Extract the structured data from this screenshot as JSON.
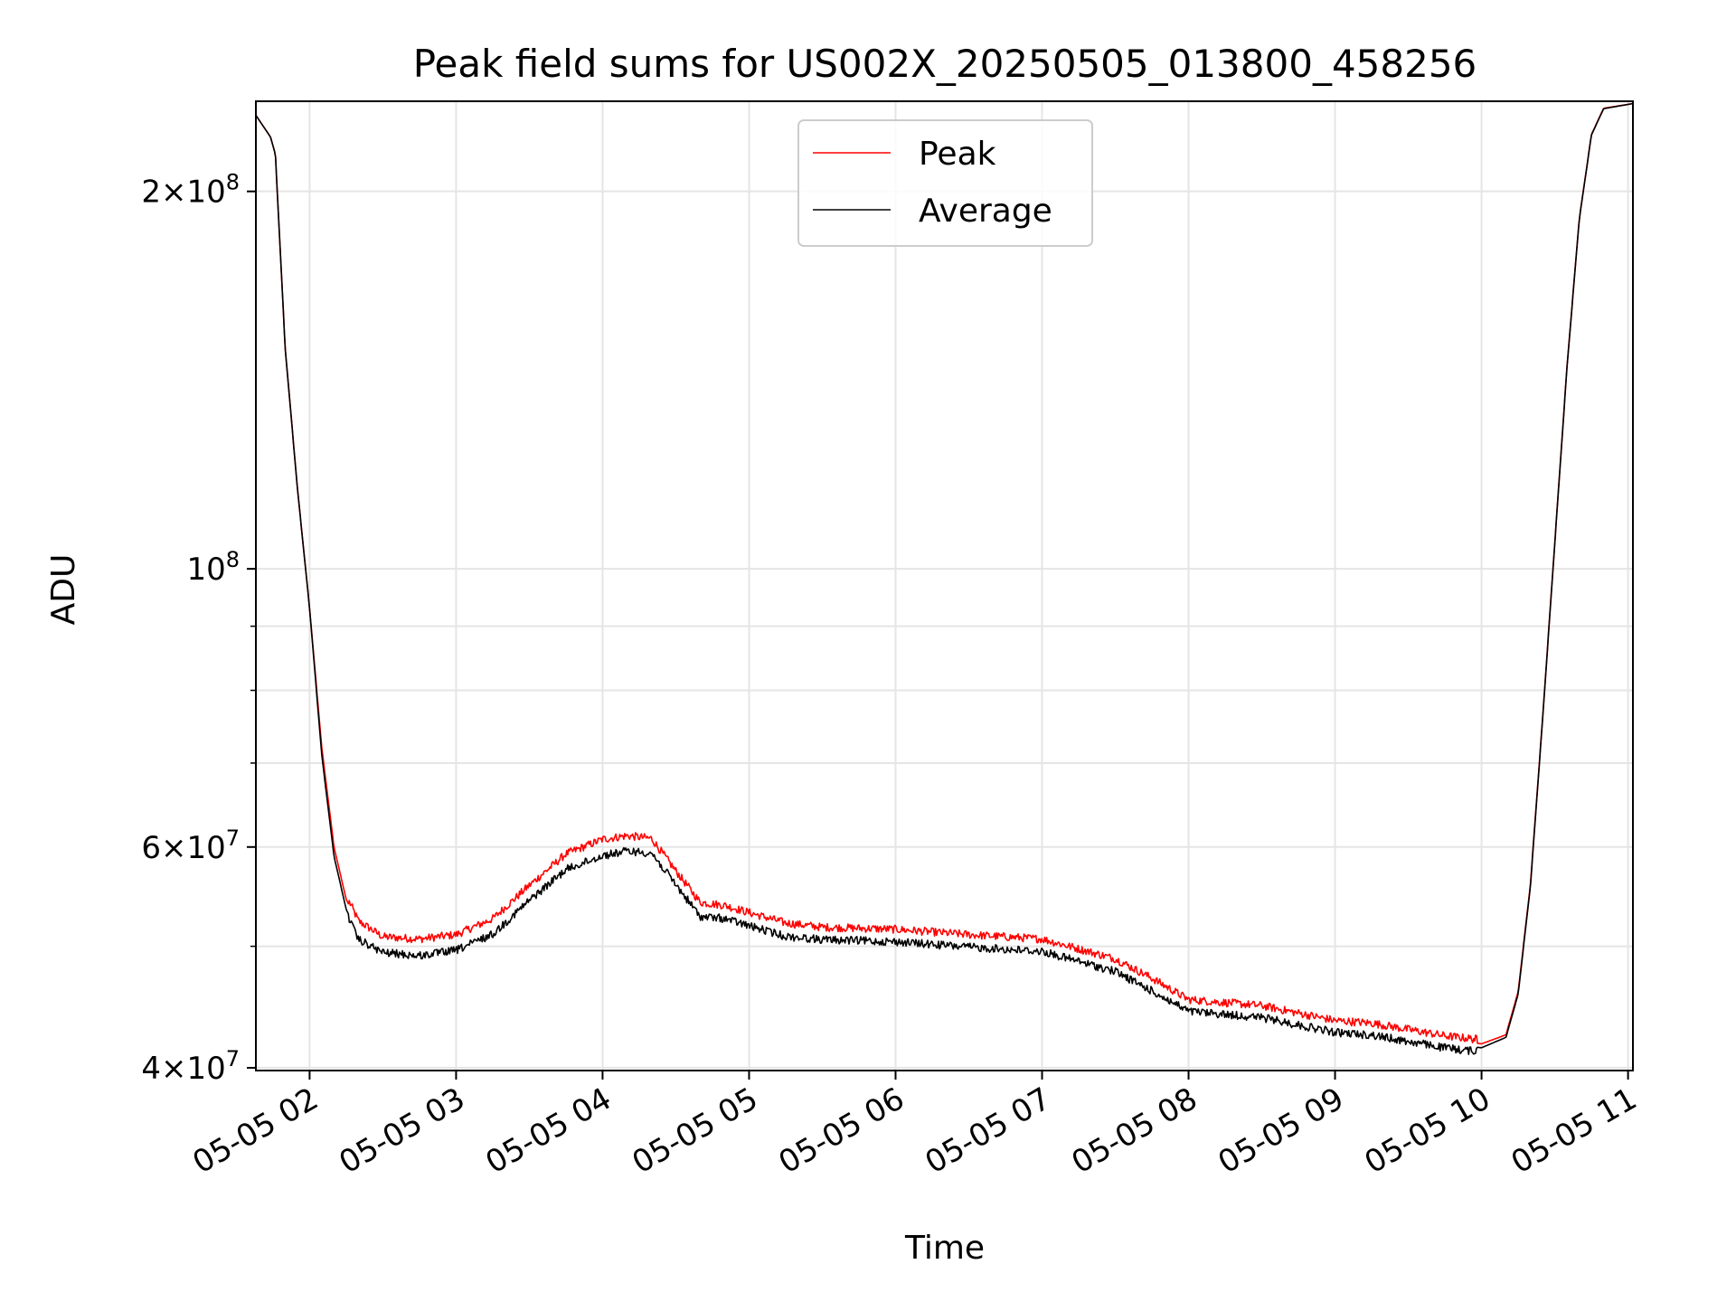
{
  "chart_data": {
    "type": "line",
    "title": "Peak field sums for US002X_20250505_013800_458256",
    "xlabel": "Time",
    "ylabel": "ADU",
    "y_scale": "log",
    "ylim": [
      39800000,
      236000000
    ],
    "xlim": [
      "2025-05-05 01:38",
      "2025-05-05 11:02"
    ],
    "grid": true,
    "legend_position": "upper center",
    "x_ticks": [
      {
        "t": "2025-05-05 02:00",
        "label": "05-05 02"
      },
      {
        "t": "2025-05-05 03:00",
        "label": "05-05 03"
      },
      {
        "t": "2025-05-05 04:00",
        "label": "05-05 04"
      },
      {
        "t": "2025-05-05 05:00",
        "label": "05-05 05"
      },
      {
        "t": "2025-05-05 06:00",
        "label": "05-05 06"
      },
      {
        "t": "2025-05-05 07:00",
        "label": "05-05 07"
      },
      {
        "t": "2025-05-05 08:00",
        "label": "05-05 08"
      },
      {
        "t": "2025-05-05 09:00",
        "label": "05-05 09"
      },
      {
        "t": "2025-05-05 10:00",
        "label": "05-05 10"
      },
      {
        "t": "2025-05-05 11:00",
        "label": "05-05 11"
      }
    ],
    "y_ticks_major": [
      {
        "value": 40000000,
        "mant": "4",
        "exp": "7"
      },
      {
        "value": 60000000,
        "mant": "6",
        "exp": "7"
      },
      {
        "value": 100000000,
        "mant": "",
        "exp": "8"
      },
      {
        "value": 200000000,
        "mant": "2",
        "exp": "8"
      }
    ],
    "y_ticks_minor": [
      50000000,
      70000000,
      80000000,
      90000000
    ],
    "series": [
      {
        "name": "Peak",
        "color": "#ff0000",
        "noise_above": true,
        "points": [
          [
            "2025-05-05 01:38",
            230000000
          ],
          [
            "2025-05-05 01:44",
            221000000
          ],
          [
            "2025-05-05 01:46",
            214000000
          ],
          [
            "2025-05-05 01:50",
            150000000
          ],
          [
            "2025-05-05 01:55",
            116000000
          ],
          [
            "2025-05-05 02:00",
            93000000
          ],
          [
            "2025-05-05 02:05",
            72000000
          ],
          [
            "2025-05-05 02:10",
            60000000
          ],
          [
            "2025-05-05 02:15",
            54500000
          ],
          [
            "2025-05-05 02:20",
            52000000
          ],
          [
            "2025-05-05 02:30",
            50500000
          ],
          [
            "2025-05-05 02:45",
            50300000
          ],
          [
            "2025-05-05 03:00",
            50700000
          ],
          [
            "2025-05-05 03:15",
            52200000
          ],
          [
            "2025-05-05 03:30",
            55500000
          ],
          [
            "2025-05-05 03:45",
            58800000
          ],
          [
            "2025-05-05 04:00",
            60400000
          ],
          [
            "2025-05-05 04:10",
            60800000
          ],
          [
            "2025-05-05 04:20",
            60500000
          ],
          [
            "2025-05-05 04:30",
            57000000
          ],
          [
            "2025-05-05 04:40",
            53800000
          ],
          [
            "2025-05-05 04:50",
            53500000
          ],
          [
            "2025-05-05 05:00",
            52800000
          ],
          [
            "2025-05-05 05:15",
            51800000
          ],
          [
            "2025-05-05 05:30",
            51400000
          ],
          [
            "2025-05-05 06:00",
            51200000
          ],
          [
            "2025-05-05 06:30",
            50700000
          ],
          [
            "2025-05-05 07:00",
            50300000
          ],
          [
            "2025-05-05 07:30",
            48500000
          ],
          [
            "2025-05-05 07:45",
            46800000
          ],
          [
            "2025-05-05 08:00",
            45000000
          ],
          [
            "2025-05-05 08:30",
            44500000
          ],
          [
            "2025-05-05 09:00",
            43300000
          ],
          [
            "2025-05-05 09:15",
            43100000
          ],
          [
            "2025-05-05 09:30",
            42600000
          ],
          [
            "2025-05-05 09:45",
            42100000
          ],
          [
            "2025-05-05 10:00",
            41800000
          ],
          [
            "2025-05-05 10:10",
            42500000
          ],
          [
            "2025-05-05 10:15",
            46000000
          ],
          [
            "2025-05-05 10:20",
            56000000
          ],
          [
            "2025-05-05 10:25",
            76000000
          ],
          [
            "2025-05-05 10:30",
            105000000
          ],
          [
            "2025-05-05 10:35",
            145000000
          ],
          [
            "2025-05-05 10:40",
            190000000
          ],
          [
            "2025-05-05 10:45",
            222000000
          ],
          [
            "2025-05-05 10:50",
            233000000
          ],
          [
            "2025-05-05 11:02",
            235000000
          ]
        ]
      },
      {
        "name": "Average",
        "color": "#000000",
        "noise_above": false,
        "points": [
          [
            "2025-05-05 01:38",
            230000000
          ],
          [
            "2025-05-05 01:44",
            221000000
          ],
          [
            "2025-05-05 01:46",
            214000000
          ],
          [
            "2025-05-05 01:50",
            150000000
          ],
          [
            "2025-05-05 01:55",
            116000000
          ],
          [
            "2025-05-05 02:00",
            93000000
          ],
          [
            "2025-05-05 02:05",
            71000000
          ],
          [
            "2025-05-05 02:10",
            59000000
          ],
          [
            "2025-05-05 02:15",
            53500000
          ],
          [
            "2025-05-05 02:20",
            51000000
          ],
          [
            "2025-05-05 02:30",
            49800000
          ],
          [
            "2025-05-05 02:45",
            49500000
          ],
          [
            "2025-05-05 03:00",
            50000000
          ],
          [
            "2025-05-05 03:15",
            51500000
          ],
          [
            "2025-05-05 03:30",
            54800000
          ],
          [
            "2025-05-05 03:45",
            58000000
          ],
          [
            "2025-05-05 04:00",
            59500000
          ],
          [
            "2025-05-05 04:10",
            60000000
          ],
          [
            "2025-05-05 04:20",
            59800000
          ],
          [
            "2025-05-05 04:30",
            56400000
          ],
          [
            "2025-05-05 04:40",
            53200000
          ],
          [
            "2025-05-05 04:50",
            53000000
          ],
          [
            "2025-05-05 05:00",
            52300000
          ],
          [
            "2025-05-05 05:15",
            51300000
          ],
          [
            "2025-05-05 05:30",
            51000000
          ],
          [
            "2025-05-05 06:00",
            50800000
          ],
          [
            "2025-05-05 06:30",
            50300000
          ],
          [
            "2025-05-05 07:00",
            49900000
          ],
          [
            "2025-05-05 07:30",
            48100000
          ],
          [
            "2025-05-05 07:45",
            46400000
          ],
          [
            "2025-05-05 08:00",
            44700000
          ],
          [
            "2025-05-05 08:30",
            44200000
          ],
          [
            "2025-05-05 09:00",
            43000000
          ],
          [
            "2025-05-05 09:15",
            42800000
          ],
          [
            "2025-05-05 09:30",
            42300000
          ],
          [
            "2025-05-05 09:45",
            41800000
          ],
          [
            "2025-05-05 10:00",
            41500000
          ],
          [
            "2025-05-05 10:10",
            42300000
          ],
          [
            "2025-05-05 10:15",
            45800000
          ],
          [
            "2025-05-05 10:20",
            55800000
          ],
          [
            "2025-05-05 10:25",
            75800000
          ],
          [
            "2025-05-05 10:30",
            104800000
          ],
          [
            "2025-05-05 10:35",
            144800000
          ],
          [
            "2025-05-05 10:40",
            189800000
          ],
          [
            "2025-05-05 10:45",
            221800000
          ],
          [
            "2025-05-05 10:50",
            232800000
          ],
          [
            "2025-05-05 11:02",
            235000000
          ]
        ]
      }
    ]
  }
}
